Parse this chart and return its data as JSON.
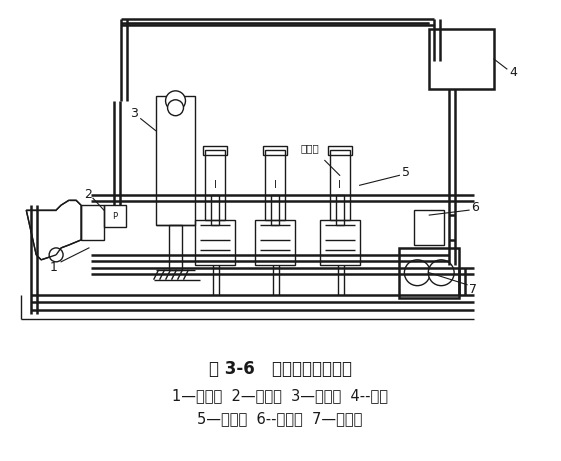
{
  "title": "图 3-6   液压系统工作简图",
  "caption_line1": "1—分配器  2—限位阀  3—液压缸  4--油箱",
  "caption_line2": "5—电磁阀  6--取力器  7—液压泵",
  "label_chugitong": "储气筒",
  "bg_color": "#ffffff",
  "line_color": "#1a1a1a"
}
